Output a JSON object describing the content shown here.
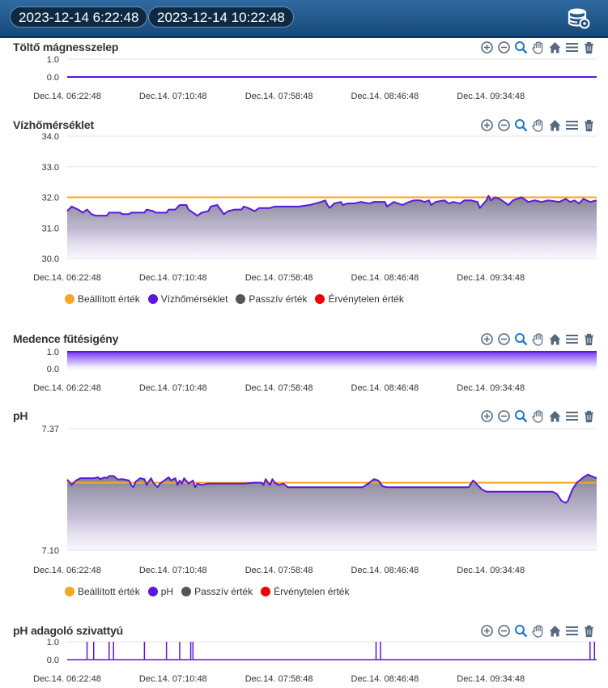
{
  "header": {
    "start_date": "2023-12-14 6:22:48",
    "end_date": "2023-12-14 10:22:48",
    "icon": "database-settings-icon"
  },
  "toolbar_icons": [
    "zoom-in-icon",
    "zoom-out-icon",
    "zoom-select-icon",
    "pan-icon",
    "home-icon",
    "menu-icon",
    "trash-icon"
  ],
  "colors": {
    "setpoint": "#f5a623",
    "value": "#5b16e0",
    "passive": "#555555",
    "invalid": "#ee0000"
  },
  "chart_data": [
    {
      "type": "line",
      "title": "Töltő mágnesszelep",
      "ylim": [
        0,
        1
      ],
      "yticks": [
        "1.0",
        "0.0"
      ],
      "x_ticks": [
        "Dec.14. 06:22:48",
        "Dec.14. 07:10:48",
        "Dec.14. 07:58:48",
        "Dec.14. 08:46:48",
        "Dec.14. 09:34:48"
      ],
      "series": [
        {
          "key": "value",
          "points": [
            [
              0,
              0
            ],
            [
              240,
              0
            ]
          ]
        }
      ]
    },
    {
      "type": "area",
      "title": "Vízhőmérséklet",
      "ylim": [
        30,
        34
      ],
      "yticks": [
        "34.0",
        "33.0",
        "32.0",
        "31.0",
        "30.0"
      ],
      "x_ticks": [
        "Dec.14. 06:22:48",
        "Dec.14. 07:10:48",
        "Dec.14. 07:58:48",
        "Dec.14. 08:46:48",
        "Dec.14. 09:34:48"
      ],
      "series": [
        {
          "key": "setpoint",
          "name": "Beállított érték",
          "points": [
            [
              0,
              32.0
            ],
            [
              240,
              32.0
            ]
          ]
        },
        {
          "key": "value",
          "name": "Vízhőmérséklet",
          "points": [
            [
              0,
              31.55
            ],
            [
              2,
              31.7
            ],
            [
              5,
              31.6
            ],
            [
              7,
              31.5
            ],
            [
              9,
              31.6
            ],
            [
              11,
              31.45
            ],
            [
              13,
              31.4
            ],
            [
              18,
              31.4
            ],
            [
              19,
              31.5
            ],
            [
              24,
              31.5
            ],
            [
              25,
              31.45
            ],
            [
              28,
              31.45
            ],
            [
              29,
              31.5
            ],
            [
              35,
              31.5
            ],
            [
              36,
              31.6
            ],
            [
              39,
              31.55
            ],
            [
              40,
              31.5
            ],
            [
              45,
              31.5
            ],
            [
              46,
              31.6
            ],
            [
              49,
              31.6
            ],
            [
              51,
              31.75
            ],
            [
              54,
              31.75
            ],
            [
              55,
              31.6
            ],
            [
              57,
              31.5
            ],
            [
              59,
              31.4
            ],
            [
              61,
              31.5
            ],
            [
              64,
              31.55
            ],
            [
              65,
              31.7
            ],
            [
              68,
              31.75
            ],
            [
              70,
              31.55
            ],
            [
              71,
              31.45
            ],
            [
              73,
              31.55
            ],
            [
              76,
              31.6
            ],
            [
              79,
              31.6
            ],
            [
              80,
              31.7
            ],
            [
              82,
              31.65
            ],
            [
              85,
              31.55
            ],
            [
              87,
              31.65
            ],
            [
              92,
              31.65
            ],
            [
              94,
              31.7
            ],
            [
              105,
              31.7
            ],
            [
              110,
              31.75
            ],
            [
              115,
              31.85
            ],
            [
              117,
              31.9
            ],
            [
              118,
              31.75
            ],
            [
              119,
              31.65
            ],
            [
              121,
              31.8
            ],
            [
              124,
              31.85
            ],
            [
              125,
              31.75
            ],
            [
              127,
              31.8
            ],
            [
              130,
              31.8
            ],
            [
              133,
              31.85
            ],
            [
              137,
              31.8
            ],
            [
              139,
              31.85
            ],
            [
              144,
              31.85
            ],
            [
              145,
              31.7
            ],
            [
              148,
              31.85
            ],
            [
              152,
              31.75
            ],
            [
              155,
              31.85
            ],
            [
              157,
              31.9
            ],
            [
              160,
              31.9
            ],
            [
              162,
              31.85
            ],
            [
              164,
              31.9
            ],
            [
              165,
              31.75
            ],
            [
              167,
              31.85
            ],
            [
              171,
              31.9
            ],
            [
              173,
              31.8
            ],
            [
              175,
              31.85
            ],
            [
              178,
              31.8
            ],
            [
              180,
              31.9
            ],
            [
              183,
              31.9
            ],
            [
              186,
              31.85
            ],
            [
              187,
              31.65
            ],
            [
              190,
              31.9
            ],
            [
              191,
              32.05
            ],
            [
              192,
              31.9
            ],
            [
              194,
              32.0
            ],
            [
              196,
              31.95
            ],
            [
              198,
              31.85
            ],
            [
              200,
              31.75
            ],
            [
              202,
              31.9
            ],
            [
              206,
              32.0
            ],
            [
              209,
              31.85
            ],
            [
              212,
              31.9
            ],
            [
              215,
              31.85
            ],
            [
              218,
              31.9
            ],
            [
              223,
              31.85
            ],
            [
              226,
              31.95
            ],
            [
              228,
              31.85
            ],
            [
              230,
              31.9
            ],
            [
              232,
              31.8
            ],
            [
              234,
              31.95
            ],
            [
              237,
              31.85
            ],
            [
              240,
              31.9
            ]
          ]
        },
        {
          "key": "passive",
          "name": "Passzív érték",
          "points": []
        },
        {
          "key": "invalid",
          "name": "Érvénytelen érték",
          "points": []
        }
      ]
    },
    {
      "type": "area",
      "title": "Medence fűtésigény",
      "ylim": [
        0,
        1
      ],
      "yticks": [
        "1.0",
        "0.0"
      ],
      "x_ticks": [
        "Dec.14. 06:22:48",
        "Dec.14. 07:10:48",
        "Dec.14. 07:58:48",
        "Dec.14. 08:46:48",
        "Dec.14. 09:34:48"
      ],
      "series": [
        {
          "key": "value",
          "points": [
            [
              0,
              1
            ],
            [
              240,
              1
            ]
          ]
        }
      ]
    },
    {
      "type": "area",
      "title": "pH",
      "ylim": [
        7.1,
        7.37
      ],
      "yticks": [
        "7.37",
        "7.10"
      ],
      "x_ticks": [
        "Dec.14. 06:22:48",
        "Dec.14. 07:10:48",
        "Dec.14. 07:58:48",
        "Dec.14. 08:46:48",
        "Dec.14. 09:34:48"
      ],
      "series": [
        {
          "key": "setpoint",
          "name": "Beállított érték",
          "points": [
            [
              0,
              7.25
            ],
            [
              240,
              7.25
            ]
          ]
        },
        {
          "key": "value",
          "name": "pH",
          "points": [
            [
              0,
              7.257
            ],
            [
              2,
              7.245
            ],
            [
              4,
              7.255
            ],
            [
              6,
              7.26
            ],
            [
              9,
              7.26
            ],
            [
              12,
              7.26
            ],
            [
              14,
              7.262
            ],
            [
              15,
              7.258
            ],
            [
              17,
              7.262
            ],
            [
              18,
              7.26
            ],
            [
              19,
              7.265
            ],
            [
              21,
              7.265
            ],
            [
              23,
              7.257
            ],
            [
              25,
              7.258
            ],
            [
              28,
              7.255
            ],
            [
              29,
              7.245
            ],
            [
              30,
              7.24
            ],
            [
              31,
              7.252
            ],
            [
              33,
              7.26
            ],
            [
              35,
              7.258
            ],
            [
              36,
              7.245
            ],
            [
              38,
              7.26
            ],
            [
              39,
              7.25
            ],
            [
              41,
              7.24
            ],
            [
              42,
              7.248
            ],
            [
              44,
              7.255
            ],
            [
              46,
              7.262
            ],
            [
              47,
              7.255
            ],
            [
              49,
              7.26
            ],
            [
              50,
              7.245
            ],
            [
              51,
              7.255
            ],
            [
              52,
              7.248
            ],
            [
              53,
              7.26
            ],
            [
              55,
              7.248
            ],
            [
              57,
              7.255
            ],
            [
              58,
              7.24
            ],
            [
              59,
              7.248
            ],
            [
              61,
              7.245
            ],
            [
              64,
              7.248
            ],
            [
              70,
              7.248
            ],
            [
              73,
              7.248
            ],
            [
              80,
              7.248
            ],
            [
              85,
              7.25
            ],
            [
              88,
              7.25
            ],
            [
              89,
              7.245
            ],
            [
              90,
              7.258
            ],
            [
              91,
              7.25
            ],
            [
              92,
              7.245
            ],
            [
              93,
              7.258
            ],
            [
              94,
              7.25
            ],
            [
              96,
              7.245
            ],
            [
              98,
              7.248
            ],
            [
              100,
              7.24
            ],
            [
              103,
              7.24
            ],
            [
              110,
              7.24
            ],
            [
              120,
              7.24
            ],
            [
              125,
              7.24
            ],
            [
              130,
              7.24
            ],
            [
              134,
              7.24
            ],
            [
              137,
              7.25
            ],
            [
              139,
              7.258
            ],
            [
              141,
              7.255
            ],
            [
              143,
              7.242
            ],
            [
              145,
              7.24
            ],
            [
              150,
              7.24
            ],
            [
              155,
              7.24
            ],
            [
              160,
              7.24
            ],
            [
              165,
              7.24
            ],
            [
              172,
              7.24
            ],
            [
              178,
              7.24
            ],
            [
              182,
              7.24
            ],
            [
              184,
              7.255
            ],
            [
              186,
              7.245
            ],
            [
              188,
              7.235
            ],
            [
              190,
              7.23
            ],
            [
              195,
              7.23
            ],
            [
              205,
              7.23
            ],
            [
              215,
              7.23
            ],
            [
              220,
              7.23
            ],
            [
              222,
              7.225
            ],
            [
              224,
              7.21
            ],
            [
              226,
              7.205
            ],
            [
              227,
              7.21
            ],
            [
              229,
              7.235
            ],
            [
              231,
              7.25
            ],
            [
              234,
              7.262
            ],
            [
              236,
              7.268
            ],
            [
              238,
              7.264
            ],
            [
              240,
              7.26
            ]
          ]
        },
        {
          "key": "passive",
          "name": "Passzív érték",
          "points": []
        },
        {
          "key": "invalid",
          "name": "Érvénytelen érték",
          "points": []
        }
      ]
    },
    {
      "type": "line",
      "title": "pH adagoló szivattyú",
      "ylim": [
        0,
        1
      ],
      "yticks": [
        "1.0",
        "0.0"
      ],
      "x_ticks": [
        "Dec.14. 06:22:48",
        "Dec.14. 07:10:48",
        "Dec.14. 07:58:48",
        "Dec.14. 08:46:48",
        "Dec.14. 09:34:48"
      ],
      "series": [
        {
          "key": "value",
          "pulses": [
            9,
            12,
            19,
            21,
            35,
            45,
            51,
            56,
            57,
            140,
            142,
            237,
            239
          ]
        }
      ]
    }
  ]
}
